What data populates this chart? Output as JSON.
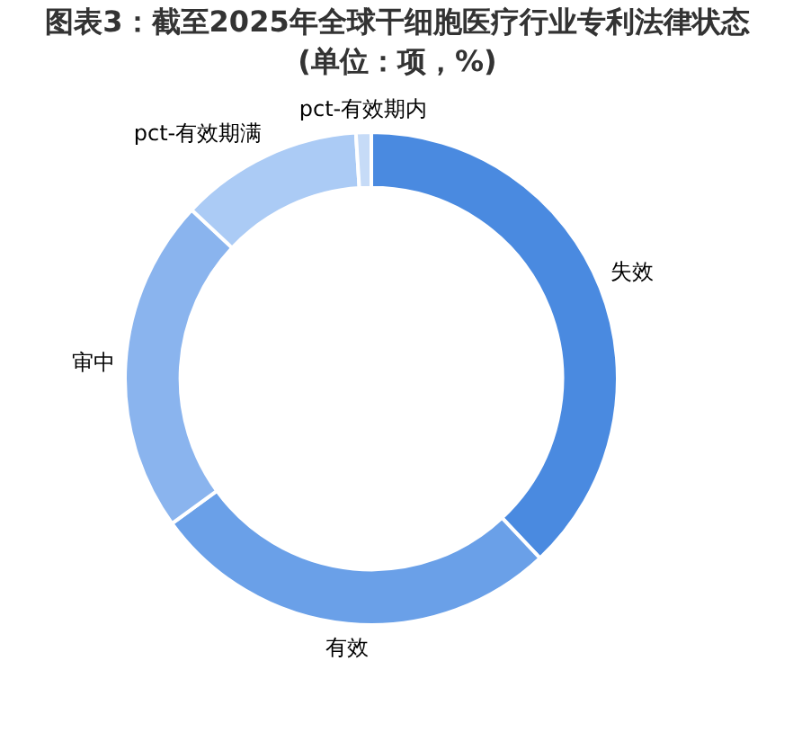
{
  "chart_data": {
    "type": "donut",
    "title": "图表3：截至2025年全球干细胞医疗行业专利法律状态",
    "subtitle": "(单位：项，%)",
    "categories": [
      "失效",
      "有效",
      "审中",
      "pct-有效期满",
      "pct-有效期内"
    ],
    "values": [
      38,
      27,
      22,
      12,
      1
    ],
    "colors": [
      "#4a8ae0",
      "#6aa0e8",
      "#8ab4ee",
      "#abcbf5",
      "#c6dbf7"
    ]
  }
}
